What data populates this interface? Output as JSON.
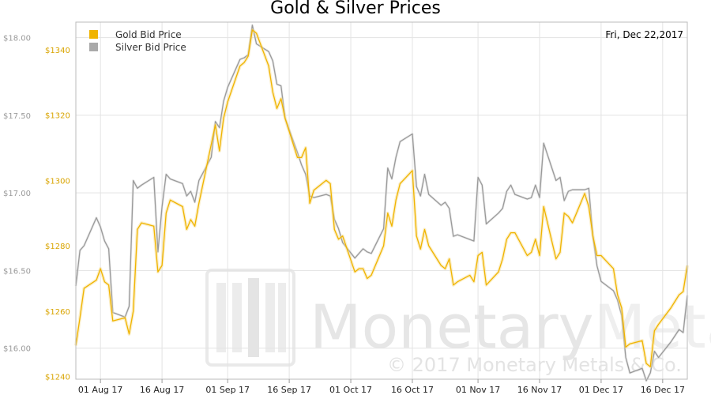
{
  "chart_data": {
    "type": "line",
    "title": "Gold & Silver Prices",
    "date_label": "Fri, Dec 22,2017",
    "x_ticks": [
      "01 Aug 17",
      "16 Aug 17",
      "01 Sep 17",
      "16 Sep 17",
      "01 Oct 17",
      "16 Oct 17",
      "01 Nov 17",
      "16 Nov 17",
      "01 Dec 17",
      "16 Dec 17"
    ],
    "x_range": [
      "2017-07-26",
      "2017-12-22"
    ],
    "grid": true,
    "legend_position": "top-left",
    "axes": {
      "silver": {
        "side": "left-outer",
        "ticks": [
          "$16.00",
          "$16.50",
          "$17.00",
          "$17.50",
          "$18.00"
        ],
        "tick_values": [
          16.0,
          16.5,
          17.0,
          17.5,
          18.0
        ],
        "ylim": [
          15.8,
          18.1
        ]
      },
      "gold": {
        "side": "left-inner",
        "ticks": [
          "$1240",
          "$1260",
          "$1280",
          "$1300",
          "$1320",
          "$1340"
        ],
        "tick_values": [
          1240,
          1260,
          1280,
          1300,
          1320,
          1340
        ],
        "ylim": [
          1239.2,
          1348.4
        ]
      }
    },
    "series": [
      {
        "name": "Gold Bid Price",
        "axis": "gold",
        "color": "#f0b400",
        "points": [
          [
            "2017-07-26",
            1249.5
          ],
          [
            "2017-07-27",
            1258
          ],
          [
            "2017-07-28",
            1267
          ],
          [
            "2017-07-31",
            1269.5
          ],
          [
            "2017-08-01",
            1273
          ],
          [
            "2017-08-02",
            1269
          ],
          [
            "2017-08-03",
            1268
          ],
          [
            "2017-08-04",
            1257
          ],
          [
            "2017-08-07",
            1258
          ],
          [
            "2017-08-08",
            1253
          ],
          [
            "2017-08-09",
            1260
          ],
          [
            "2017-08-10",
            1285
          ],
          [
            "2017-08-11",
            1287
          ],
          [
            "2017-08-14",
            1286
          ],
          [
            "2017-08-15",
            1272
          ],
          [
            "2017-08-16",
            1274
          ],
          [
            "2017-08-17",
            1290
          ],
          [
            "2017-08-18",
            1294
          ],
          [
            "2017-08-21",
            1292
          ],
          [
            "2017-08-22",
            1285
          ],
          [
            "2017-08-23",
            1288
          ],
          [
            "2017-08-24",
            1286
          ],
          [
            "2017-08-25",
            1293
          ],
          [
            "2017-08-28",
            1311
          ],
          [
            "2017-08-29",
            1317
          ],
          [
            "2017-08-30",
            1309
          ],
          [
            "2017-08-31",
            1319
          ],
          [
            "2017-09-01",
            1324
          ],
          [
            "2017-09-04",
            1335
          ],
          [
            "2017-09-05",
            1336
          ],
          [
            "2017-09-06",
            1338
          ],
          [
            "2017-09-07",
            1346
          ],
          [
            "2017-09-08",
            1345
          ],
          [
            "2017-09-11",
            1335
          ],
          [
            "2017-09-12",
            1327
          ],
          [
            "2017-09-13",
            1322
          ],
          [
            "2017-09-14",
            1325
          ],
          [
            "2017-09-15",
            1319
          ],
          [
            "2017-09-18",
            1307
          ],
          [
            "2017-09-19",
            1307
          ],
          [
            "2017-09-20",
            1310
          ],
          [
            "2017-09-21",
            1293
          ],
          [
            "2017-09-22",
            1297
          ],
          [
            "2017-09-25",
            1300
          ],
          [
            "2017-09-26",
            1299
          ],
          [
            "2017-09-27",
            1285
          ],
          [
            "2017-09-28",
            1282
          ],
          [
            "2017-09-29",
            1283
          ],
          [
            "2017-10-02",
            1272
          ],
          [
            "2017-10-03",
            1273
          ],
          [
            "2017-10-04",
            1273
          ],
          [
            "2017-10-05",
            1270
          ],
          [
            "2017-10-06",
            1271
          ],
          [
            "2017-10-09",
            1280
          ],
          [
            "2017-10-10",
            1290
          ],
          [
            "2017-10-11",
            1286
          ],
          [
            "2017-10-12",
            1294
          ],
          [
            "2017-10-13",
            1299
          ],
          [
            "2017-10-16",
            1303
          ],
          [
            "2017-10-17",
            1283
          ],
          [
            "2017-10-18",
            1279
          ],
          [
            "2017-10-19",
            1285
          ],
          [
            "2017-10-20",
            1280
          ],
          [
            "2017-10-23",
            1274
          ],
          [
            "2017-10-24",
            1273
          ],
          [
            "2017-10-25",
            1276
          ],
          [
            "2017-10-26",
            1268
          ],
          [
            "2017-10-27",
            1269
          ],
          [
            "2017-10-30",
            1271
          ],
          [
            "2017-10-31",
            1269
          ],
          [
            "2017-11-01",
            1277
          ],
          [
            "2017-11-02",
            1278
          ],
          [
            "2017-11-03",
            1268
          ],
          [
            "2017-11-06",
            1272
          ],
          [
            "2017-11-07",
            1276
          ],
          [
            "2017-11-08",
            1282
          ],
          [
            "2017-11-09",
            1284
          ],
          [
            "2017-11-10",
            1284
          ],
          [
            "2017-11-13",
            1277
          ],
          [
            "2017-11-14",
            1278
          ],
          [
            "2017-11-15",
            1282
          ],
          [
            "2017-11-16",
            1277
          ],
          [
            "2017-11-17",
            1292
          ],
          [
            "2017-11-20",
            1276
          ],
          [
            "2017-11-21",
            1278
          ],
          [
            "2017-11-22",
            1290
          ],
          [
            "2017-11-23",
            1289
          ],
          [
            "2017-11-24",
            1287
          ],
          [
            "2017-11-27",
            1296
          ],
          [
            "2017-11-28",
            1292
          ],
          [
            "2017-11-29",
            1283
          ],
          [
            "2017-11-30",
            1277
          ],
          [
            "2017-12-01",
            1277
          ],
          [
            "2017-12-04",
            1273
          ],
          [
            "2017-12-05",
            1265
          ],
          [
            "2017-12-06",
            1261
          ],
          [
            "2017-12-07",
            1249
          ],
          [
            "2017-12-08",
            1250
          ],
          [
            "2017-12-11",
            1251
          ],
          [
            "2017-12-12",
            1244
          ],
          [
            "2017-12-13",
            1243
          ],
          [
            "2017-12-14",
            1254
          ],
          [
            "2017-12-15",
            1256
          ],
          [
            "2017-12-18",
            1261
          ],
          [
            "2017-12-19",
            1263
          ],
          [
            "2017-12-20",
            1265
          ],
          [
            "2017-12-21",
            1266
          ],
          [
            "2017-12-22",
            1274
          ]
        ]
      },
      {
        "name": "Silver Bid Price",
        "axis": "silver",
        "color": "#9a9a9a",
        "points": [
          [
            "2017-07-26",
            16.4
          ],
          [
            "2017-07-27",
            16.63
          ],
          [
            "2017-07-28",
            16.66
          ],
          [
            "2017-07-31",
            16.84
          ],
          [
            "2017-08-01",
            16.78
          ],
          [
            "2017-08-02",
            16.69
          ],
          [
            "2017-08-03",
            16.64
          ],
          [
            "2017-08-04",
            16.23
          ],
          [
            "2017-08-07",
            16.2
          ],
          [
            "2017-08-08",
            16.27
          ],
          [
            "2017-08-09",
            17.08
          ],
          [
            "2017-08-10",
            17.03
          ],
          [
            "2017-08-11",
            17.05
          ],
          [
            "2017-08-14",
            17.1
          ],
          [
            "2017-08-15",
            16.62
          ],
          [
            "2017-08-16",
            16.91
          ],
          [
            "2017-08-17",
            17.12
          ],
          [
            "2017-08-18",
            17.09
          ],
          [
            "2017-08-21",
            17.06
          ],
          [
            "2017-08-22",
            16.98
          ],
          [
            "2017-08-23",
            17.01
          ],
          [
            "2017-08-24",
            16.94
          ],
          [
            "2017-08-25",
            17.08
          ],
          [
            "2017-08-28",
            17.23
          ],
          [
            "2017-08-29",
            17.46
          ],
          [
            "2017-08-30",
            17.42
          ],
          [
            "2017-08-31",
            17.59
          ],
          [
            "2017-09-01",
            17.68
          ],
          [
            "2017-09-04",
            17.86
          ],
          [
            "2017-09-05",
            17.87
          ],
          [
            "2017-09-06",
            17.89
          ],
          [
            "2017-09-07",
            18.08
          ],
          [
            "2017-09-08",
            17.96
          ],
          [
            "2017-09-11",
            17.91
          ],
          [
            "2017-09-12",
            17.85
          ],
          [
            "2017-09-13",
            17.7
          ],
          [
            "2017-09-14",
            17.69
          ],
          [
            "2017-09-15",
            17.48
          ],
          [
            "2017-09-18",
            17.26
          ],
          [
            "2017-09-19",
            17.18
          ],
          [
            "2017-09-20",
            17.12
          ],
          [
            "2017-09-21",
            16.98
          ],
          [
            "2017-09-22",
            16.97
          ],
          [
            "2017-09-25",
            16.99
          ],
          [
            "2017-09-26",
            16.98
          ],
          [
            "2017-09-27",
            16.83
          ],
          [
            "2017-09-28",
            16.77
          ],
          [
            "2017-09-29",
            16.68
          ],
          [
            "2017-10-02",
            16.58
          ],
          [
            "2017-10-03",
            16.61
          ],
          [
            "2017-10-04",
            16.64
          ],
          [
            "2017-10-05",
            16.62
          ],
          [
            "2017-10-06",
            16.61
          ],
          [
            "2017-10-09",
            16.77
          ],
          [
            "2017-10-10",
            17.16
          ],
          [
            "2017-10-11",
            17.09
          ],
          [
            "2017-10-12",
            17.23
          ],
          [
            "2017-10-13",
            17.33
          ],
          [
            "2017-10-16",
            17.38
          ],
          [
            "2017-10-17",
            17.04
          ],
          [
            "2017-10-18",
            16.98
          ],
          [
            "2017-10-19",
            17.12
          ],
          [
            "2017-10-20",
            16.99
          ],
          [
            "2017-10-23",
            16.92
          ],
          [
            "2017-10-24",
            16.94
          ],
          [
            "2017-10-25",
            16.9
          ],
          [
            "2017-10-26",
            16.72
          ],
          [
            "2017-10-27",
            16.73
          ],
          [
            "2017-10-30",
            16.7
          ],
          [
            "2017-10-31",
            16.69
          ],
          [
            "2017-11-01",
            17.1
          ],
          [
            "2017-11-02",
            17.05
          ],
          [
            "2017-11-03",
            16.8
          ],
          [
            "2017-11-06",
            16.87
          ],
          [
            "2017-11-07",
            16.9
          ],
          [
            "2017-11-08",
            17.01
          ],
          [
            "2017-11-09",
            17.05
          ],
          [
            "2017-11-10",
            16.99
          ],
          [
            "2017-11-13",
            16.96
          ],
          [
            "2017-11-14",
            16.97
          ],
          [
            "2017-11-15",
            17.05
          ],
          [
            "2017-11-16",
            16.97
          ],
          [
            "2017-11-17",
            17.32
          ],
          [
            "2017-11-20",
            17.08
          ],
          [
            "2017-11-21",
            17.1
          ],
          [
            "2017-11-22",
            16.95
          ],
          [
            "2017-11-23",
            17.01
          ],
          [
            "2017-11-24",
            17.02
          ],
          [
            "2017-11-27",
            17.02
          ],
          [
            "2017-11-28",
            17.03
          ],
          [
            "2017-11-29",
            16.72
          ],
          [
            "2017-11-30",
            16.53
          ],
          [
            "2017-12-01",
            16.43
          ],
          [
            "2017-12-04",
            16.37
          ],
          [
            "2017-12-05",
            16.31
          ],
          [
            "2017-12-06",
            16.21
          ],
          [
            "2017-12-07",
            15.94
          ],
          [
            "2017-12-08",
            15.84
          ],
          [
            "2017-12-11",
            15.87
          ],
          [
            "2017-12-12",
            15.79
          ],
          [
            "2017-12-13",
            15.84
          ],
          [
            "2017-12-14",
            15.98
          ],
          [
            "2017-12-15",
            15.94
          ],
          [
            "2017-12-18",
            16.04
          ],
          [
            "2017-12-19",
            16.08
          ],
          [
            "2017-12-20",
            16.12
          ],
          [
            "2017-12-21",
            16.1
          ],
          [
            "2017-12-22",
            16.34
          ]
        ]
      }
    ]
  },
  "watermark": {
    "brand_text": "MonetaryMetals",
    "brand_word_1": "Monetary",
    "brand_word_2": "Metals",
    "copyright": "© 2017 Monetary Metals & Co.",
    "logo_icon": "monetary-metals-logo-icon"
  }
}
